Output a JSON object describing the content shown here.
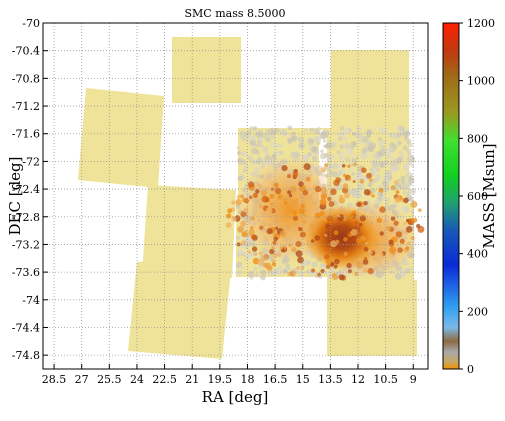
{
  "chart_data": {
    "type": "heatmap",
    "title": "SMC mass  8.5000",
    "xlabel": "RA [deg]",
    "ylabel": "DEC [deg]",
    "x_axis": {
      "reversed": true,
      "xlim": [
        29.1,
        8.2
      ],
      "ticks": [
        "28.5",
        "27",
        "25.5",
        "24",
        "22.5",
        "21",
        "19.5",
        "18",
        "16.5",
        "15",
        "13.5",
        "12",
        "10.5",
        "9"
      ]
    },
    "y_axis": {
      "ylim": [
        -75.0,
        -70.0
      ],
      "ticks": [
        "-70",
        "-70.4",
        "-70.8",
        "-71.2",
        "-71.6",
        "-72",
        "-72.4",
        "-72.8",
        "-73.2",
        "-73.6",
        "-74",
        "-74.4",
        "-74.8"
      ]
    },
    "grid": true,
    "colorbar": {
      "label": "MASS [Msun]",
      "range": [
        0,
        1200
      ],
      "ticks": [
        "0",
        "200",
        "400",
        "600",
        "800",
        "1000",
        "1200"
      ]
    },
    "peak": {
      "ra": 12.9,
      "dec": -73.1,
      "mass_approx": 900
    },
    "colors": {
      "tile_fill": "#efe39a",
      "grid": "#9a9a9a",
      "dense_core": "#9a3a1a",
      "mid_density": "#f09018",
      "low_density": "#c9c3b0"
    }
  }
}
